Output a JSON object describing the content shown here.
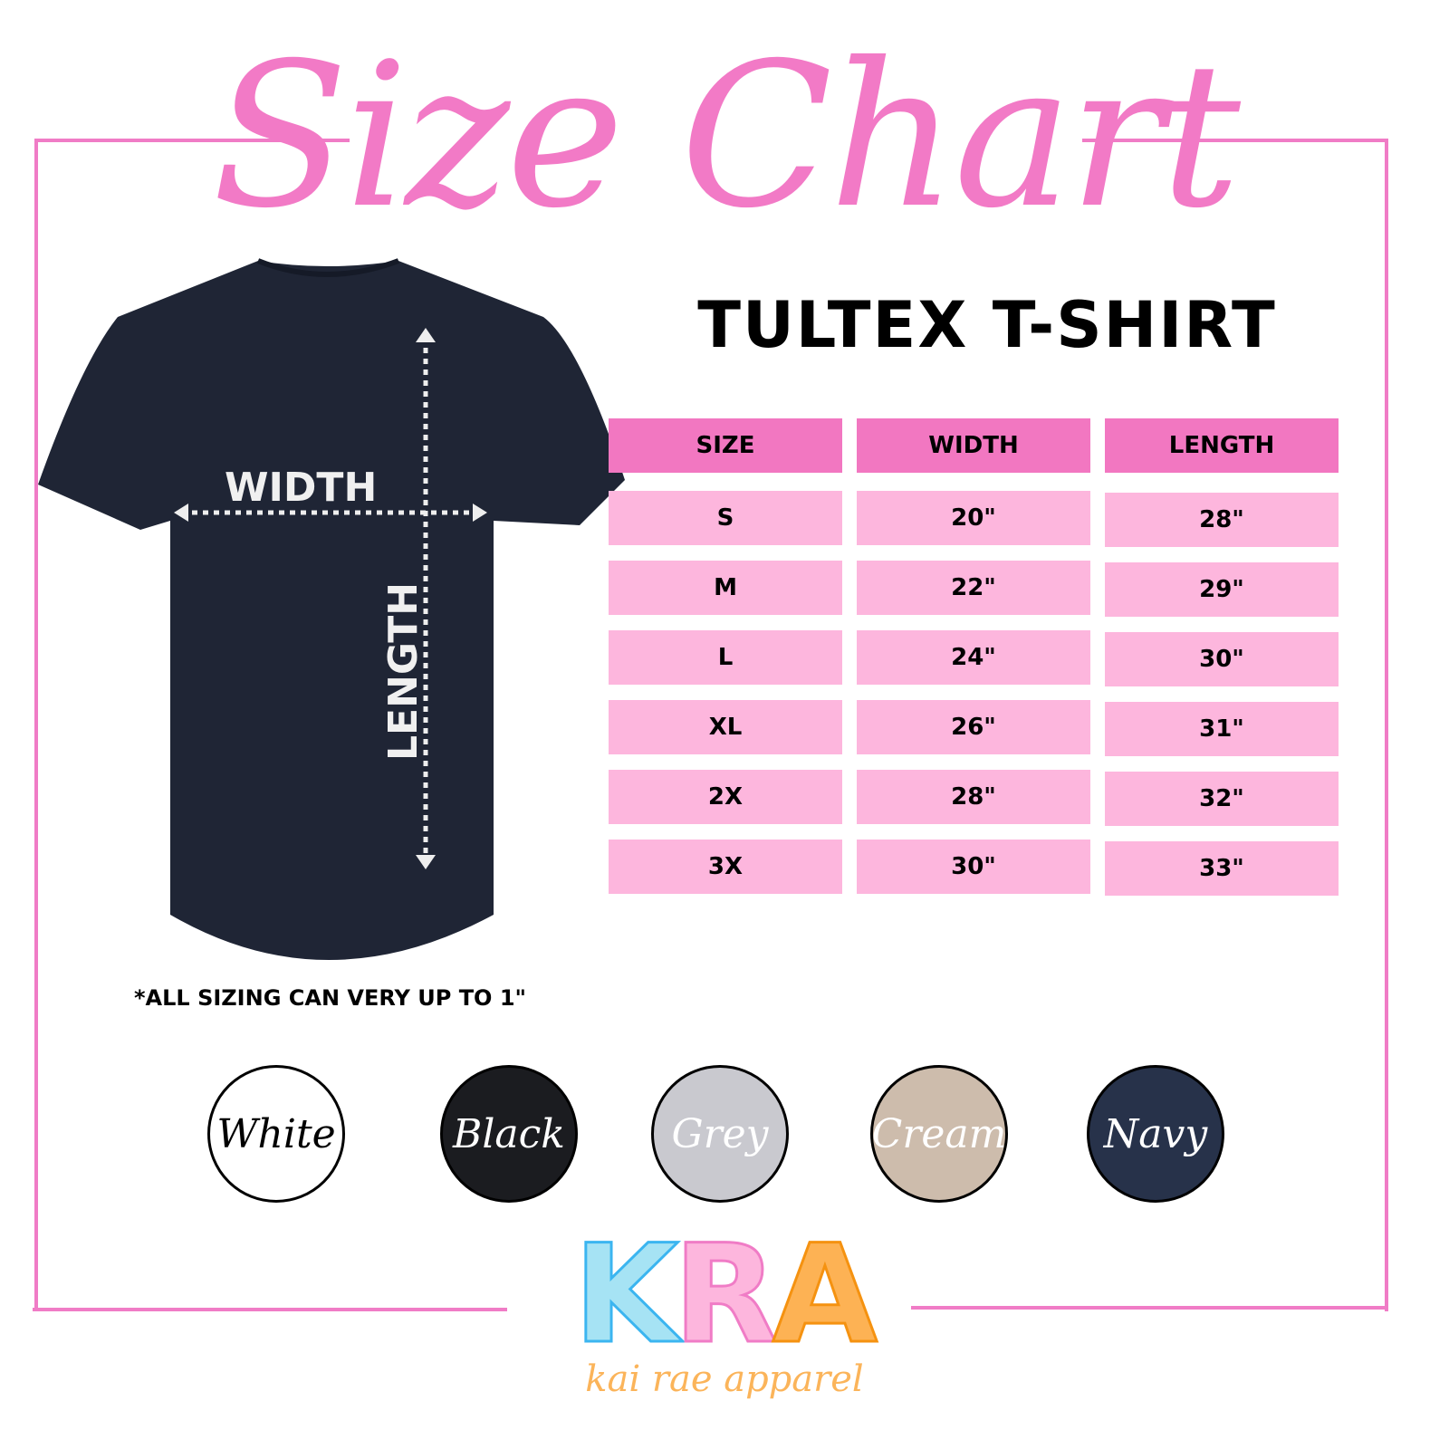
{
  "title": "Size Chart",
  "subtitle": "TULTEX T-SHIRT",
  "colors": {
    "accent": "#f277c1",
    "row": "#fdb6dd",
    "shirt": "#1f2535"
  },
  "shirt": {
    "width_label": "WIDTH",
    "length_label": "LENGTH"
  },
  "table": {
    "headers": [
      "SIZE",
      "WIDTH",
      "LENGTH"
    ],
    "rows": [
      [
        "S",
        "20\"",
        "28\""
      ],
      [
        "M",
        "22\"",
        "29\""
      ],
      [
        "L",
        "24\"",
        "30\""
      ],
      [
        "XL",
        "26\"",
        "31\""
      ],
      [
        "2X",
        "28\"",
        "32\""
      ],
      [
        "3X",
        "30\"",
        "33\""
      ]
    ]
  },
  "note": "*ALL SIZING CAN VERY UP TO 1\"",
  "swatches": [
    {
      "label": "White",
      "color": "#ffffff",
      "text": "#000000"
    },
    {
      "label": "Black",
      "color": "#1b1c20",
      "text": "#ffffff"
    },
    {
      "label": "Grey",
      "color": "#c9c9cf",
      "text": "#ffffff"
    },
    {
      "label": "Cream",
      "color": "#cdbcac",
      "text": "#ffffff"
    },
    {
      "label": "Navy",
      "color": "#27324a",
      "text": "#ffffff"
    }
  ],
  "logo": {
    "letters": [
      "K",
      "R",
      "A"
    ],
    "colors": [
      "#a6e3f4",
      "#fdb6dd",
      "#fdb254"
    ],
    "tagline": "kai rae apparel"
  }
}
